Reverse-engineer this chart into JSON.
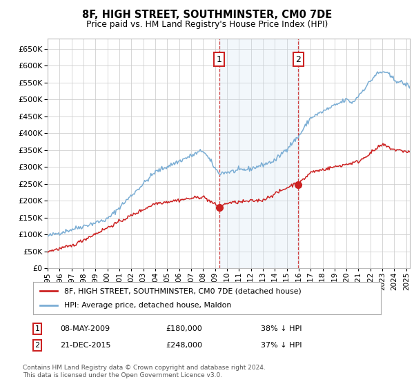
{
  "title": "8F, HIGH STREET, SOUTHMINSTER, CM0 7DE",
  "subtitle": "Price paid vs. HM Land Registry's House Price Index (HPI)",
  "legend_line1": "8F, HIGH STREET, SOUTHMINSTER, CM0 7DE (detached house)",
  "legend_line2": "HPI: Average price, detached house, Maldon",
  "footnote": "Contains HM Land Registry data © Crown copyright and database right 2024.\nThis data is licensed under the Open Government Licence v3.0.",
  "transaction1_date": "08-MAY-2009",
  "transaction1_price": 180000,
  "transaction1_label": "38% ↓ HPI",
  "transaction2_date": "21-DEC-2015",
  "transaction2_price": 248000,
  "transaction2_label": "37% ↓ HPI",
  "xlim_start": 1995.0,
  "xlim_end": 2025.3,
  "ylim_min": 0,
  "ylim_max": 680000,
  "background_color": "#ffffff",
  "grid_color": "#cccccc",
  "hpi_color": "#7aadd4",
  "price_color": "#cc2222",
  "shade_color": "#cce0f0"
}
